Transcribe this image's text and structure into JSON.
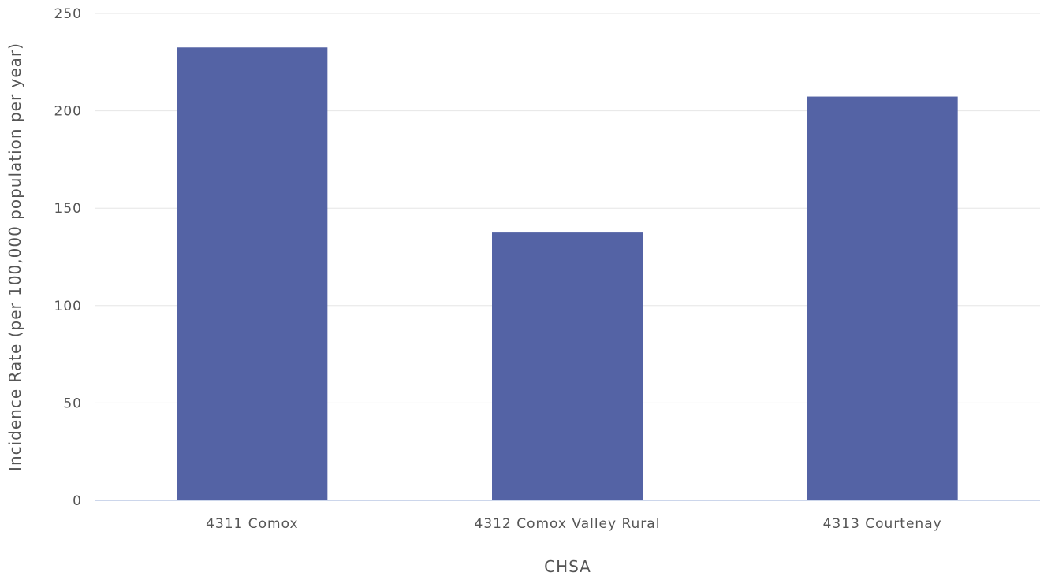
{
  "chart_data": {
    "type": "bar",
    "title": "",
    "xlabel": "CHSA",
    "ylabel": "Incidence Rate (per 100,000 population per year)",
    "categories": [
      "4311 Comox",
      "4312 Comox Valley Rural",
      "4313 Courtenay"
    ],
    "series": [
      {
        "values": [
          232.5,
          137.5,
          207.3
        ]
      }
    ],
    "ylim": [
      0,
      250
    ],
    "yticks": [
      0,
      50,
      100,
      150,
      200,
      250
    ],
    "grid": true,
    "legend": "none",
    "bar_color": "#5463a5"
  }
}
